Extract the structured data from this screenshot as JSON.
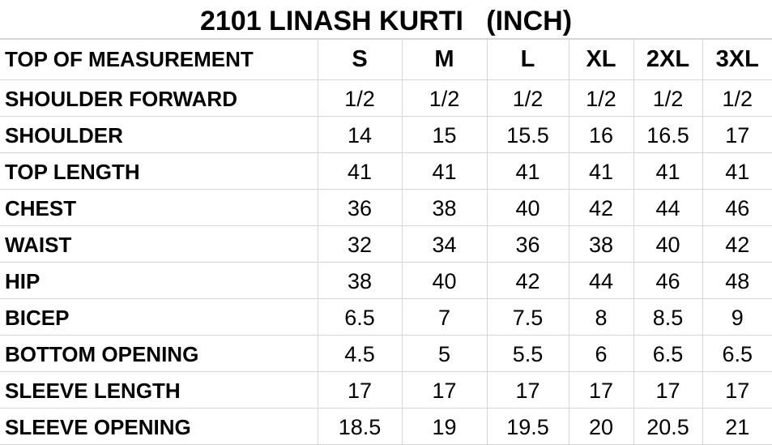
{
  "title": "2101 LINASH KURTI   (INCH)",
  "header": {
    "label": "TOP OF MEASUREMENT",
    "sizes": [
      "S",
      "M",
      "L",
      "XL",
      "2XL",
      "3XL"
    ]
  },
  "rows": [
    {
      "label": "SHOULDER FORWARD",
      "values": [
        "1/2",
        "1/2",
        "1/2",
        "1/2",
        "1/2",
        "1/2"
      ]
    },
    {
      "label": "SHOULDER",
      "values": [
        "14",
        "15",
        "15.5",
        "16",
        "16.5",
        "17"
      ]
    },
    {
      "label": "TOP LENGTH",
      "values": [
        "41",
        "41",
        "41",
        "41",
        "41",
        "41"
      ]
    },
    {
      "label": "CHEST",
      "values": [
        "36",
        "38",
        "40",
        "42",
        "44",
        "46"
      ]
    },
    {
      "label": "WAIST",
      "values": [
        "32",
        "34",
        "36",
        "38",
        "40",
        "42"
      ]
    },
    {
      "label": "HIP",
      "values": [
        "38",
        "40",
        "42",
        "44",
        "46",
        "48"
      ]
    },
    {
      "label": "BICEP",
      "values": [
        "6.5",
        "7",
        "7.5",
        "8",
        "8.5",
        "9"
      ]
    },
    {
      "label": "BOTTOM OPENING",
      "values": [
        "4.5",
        "5",
        "5.5",
        "6",
        "6.5",
        "6.5"
      ]
    },
    {
      "label": "SLEEVE LENGTH",
      "values": [
        "17",
        "17",
        "17",
        "17",
        "17",
        "17"
      ]
    },
    {
      "label": "SLEEVE OPENING",
      "values": [
        "18.5",
        "19",
        "19.5",
        "20",
        "20.5",
        "21"
      ]
    }
  ]
}
